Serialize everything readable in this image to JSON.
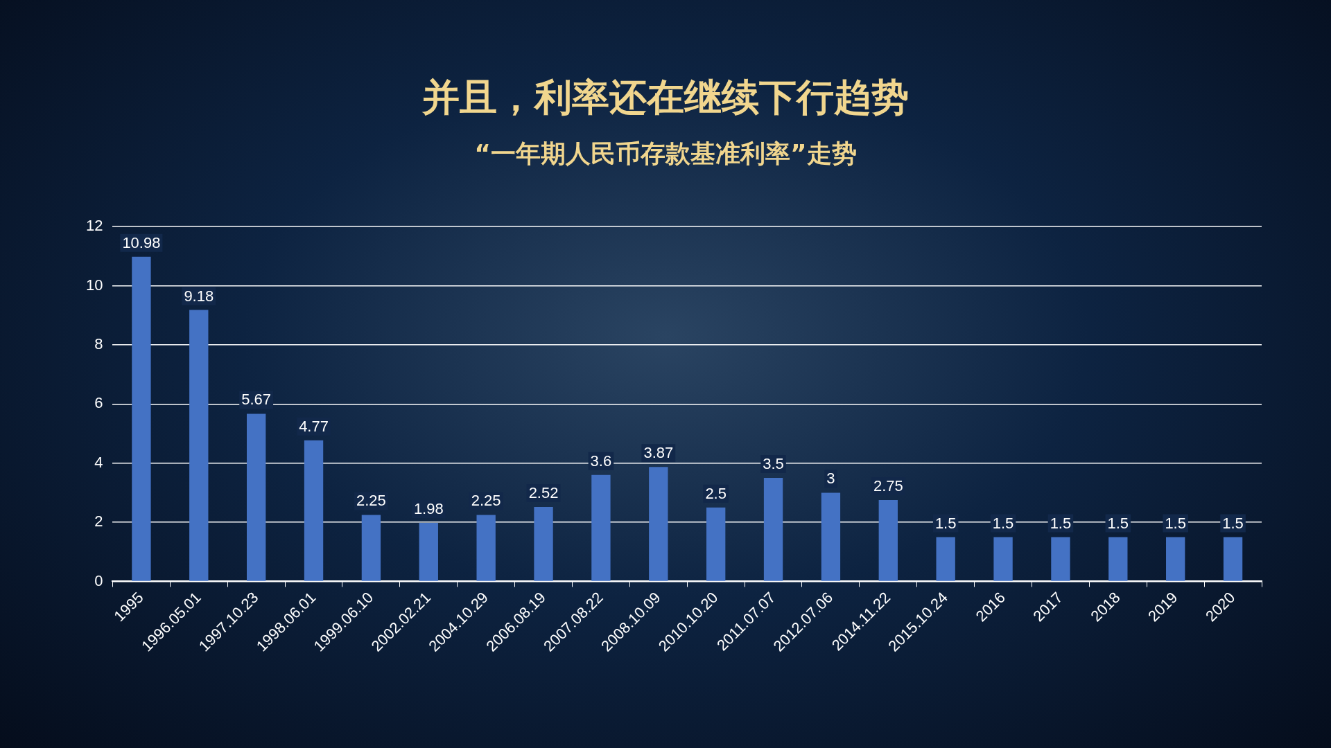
{
  "chart_data": {
    "type": "bar",
    "title": "并且，利率还在继续下行趋势",
    "subtitle": "“一年期人民币存款基准利率”走势",
    "categories": [
      "1995",
      "1996.05.01",
      "1997.10.23",
      "1998.06.01",
      "1999.06.10",
      "2002.02.21",
      "2004.10.29",
      "2006.08.19",
      "2007.08.22",
      "2008.10.09",
      "2010.10.20",
      "2011.07.07",
      "2012.07.06",
      "2014.11.22",
      "2015.10.24",
      "2016",
      "2017",
      "2018",
      "2019",
      "2020"
    ],
    "values": [
      10.98,
      9.18,
      5.67,
      4.77,
      2.25,
      1.98,
      2.25,
      2.52,
      3.6,
      3.87,
      2.5,
      3.5,
      3,
      2.75,
      1.5,
      1.5,
      1.5,
      1.5,
      1.5,
      1.5
    ],
    "color": "#4472c4",
    "ylim": [
      0,
      12
    ],
    "yticks": [
      0,
      2,
      4,
      6,
      8,
      10,
      12
    ],
    "grid": "y",
    "data_labels": true
  }
}
